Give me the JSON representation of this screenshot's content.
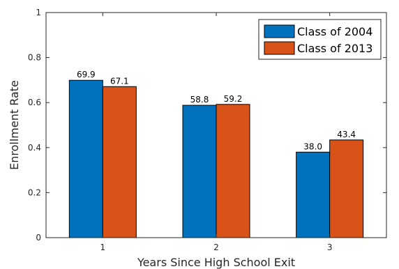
{
  "chart_data": {
    "type": "bar",
    "categories": [
      "1",
      "2",
      "3"
    ],
    "series": [
      {
        "name": "Class of 2004",
        "values": [
          0.699,
          0.588,
          0.38
        ],
        "labels": [
          "69.9",
          "58.8",
          "38.0"
        ],
        "color": "#0072BD"
      },
      {
        "name": "Class of 2013",
        "values": [
          0.671,
          0.592,
          0.434
        ],
        "labels": [
          "67.1",
          "59.2",
          "43.4"
        ],
        "color": "#D95319"
      }
    ],
    "xlabel": "Years Since High School Exit",
    "ylabel": "Enrollment Rate",
    "ylim": [
      0,
      1
    ],
    "yticks": [
      0,
      0.2,
      0.4,
      0.6,
      0.8,
      1
    ],
    "ytick_labels": [
      "0",
      "0.2",
      "0.4",
      "0.6",
      "0.8",
      "1"
    ],
    "grid": false,
    "legend_position": "top-right"
  }
}
